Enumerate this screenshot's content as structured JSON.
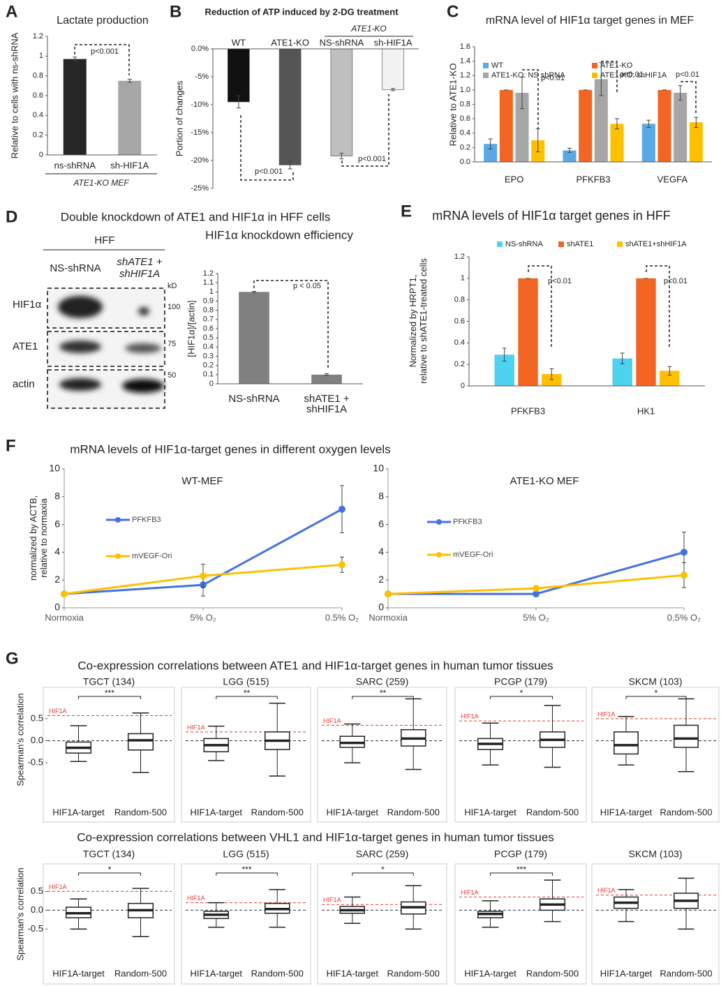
{
  "chart_data": [
    {
      "type": "bar",
      "panel": "A",
      "title": "Lactate production",
      "ylabel": "Relative to cells with ns-shRNA",
      "categories": [
        "ns-shRNA",
        "sh-HIF1A"
      ],
      "values": [
        0.97,
        0.75
      ],
      "errors": [
        0.02,
        0.015
      ],
      "colors": [
        "#262626",
        "#a6a6a6"
      ],
      "ylim": [
        0,
        1.2
      ],
      "yticks": [
        0,
        0.2,
        0.4,
        0.6,
        0.8,
        1,
        1.2
      ],
      "group_label": "ATE1-KO MEF",
      "annotations": [
        "p<0.001"
      ]
    },
    {
      "type": "bar",
      "panel": "B",
      "title": "Reduction of ATP induced by 2-DG treatment",
      "ylabel": "Portion of changes",
      "categories": [
        "WT",
        "ATE1-KO",
        "NS-shRNA",
        "sh-HIF1A"
      ],
      "values": [
        -9.5,
        -20.8,
        -19.2,
        -7.3
      ],
      "errors": [
        1.1,
        0.7,
        0.5,
        0.2
      ],
      "colors": [
        "#111111",
        "#555555",
        "#bfbfbf",
        "#f2f2f2"
      ],
      "ylim": [
        -25,
        0
      ],
      "yticks": [
        {
          "value": 0,
          "label": "0.0%"
        },
        {
          "value": -5,
          "label": "-5%"
        },
        {
          "value": -10,
          "label": "-10%"
        },
        {
          "value": -15,
          "label": "-15%"
        },
        {
          "value": -20,
          "label": "-20%"
        },
        {
          "value": -25,
          "label": "-25%"
        }
      ],
      "group_label": "ATE1-KO",
      "annotations": [
        "p<0.001",
        "p<0.001"
      ]
    },
    {
      "type": "bar",
      "panel": "C",
      "title": "mRNA level of HIF1α target genes in MEF",
      "ylabel": "Relative to ATE1-KO",
      "categories": [
        "EPO",
        "PFKFB3",
        "VEGFA"
      ],
      "series": [
        {
          "name": "WT",
          "color": "#5aa9e6",
          "values": [
            0.25,
            0.16,
            0.53
          ],
          "errors": [
            0.07,
            0.03,
            0.05
          ]
        },
        {
          "name": "ATE1-KO",
          "color": "#f26522",
          "values": [
            1,
            1,
            1
          ],
          "errors": [
            0,
            0,
            0
          ]
        },
        {
          "name": "ATE1-KO: NS shRNA",
          "color": "#a6a6a6",
          "values": [
            0.96,
            1.15,
            0.96
          ],
          "errors": [
            0.22,
            0.23,
            0.1
          ]
        },
        {
          "name": "ATE1-KO: shHIF1A",
          "color": "#ffc000",
          "values": [
            0.3,
            0.53,
            0.55
          ],
          "errors": [
            0.16,
            0.07,
            0.07
          ]
        }
      ],
      "ylim": [
        0,
        1.6
      ],
      "yticks": [
        {
          "value": 0,
          "label": "0.0"
        },
        0.2,
        0.4,
        0.6,
        0.8,
        {
          "value": 1,
          "label": "1.0"
        },
        1.2,
        1.4,
        1.6
      ],
      "annotations": [
        "p<0.01",
        "p<0.01",
        "p<0.01"
      ]
    },
    {
      "type": "bar",
      "title": "HIF1α knockdown efficiency",
      "ylabel": "[HIF1α]/[actin]",
      "categories": [
        "NS-shRNA",
        [
          "shATE1 +",
          "shHIF1A"
        ]
      ],
      "values": [
        1,
        0.1
      ],
      "errors": [
        0.005,
        0.01
      ],
      "color": "#808080",
      "ylim": [
        0,
        1.2
      ],
      "yticks": [
        0,
        0.1,
        0.2,
        0.3,
        0.4,
        0.5,
        0.6,
        0.7,
        0.8,
        0.9,
        1,
        1.1,
        1.2
      ],
      "annotations": [
        "p < 0.05"
      ]
    },
    {
      "type": "bar",
      "panel": "E",
      "title": "mRNA levels of HIF1α target genes in HFF",
      "ylabel": [
        "Normalized by HRPT1,",
        "relative to shATE1-treated cells"
      ],
      "categories": [
        "PFKFB3",
        "HK1"
      ],
      "series": [
        {
          "name": "NS-shRNA",
          "color": "#4dd2f0",
          "values": [
            0.29,
            0.255
          ],
          "errors": [
            0.06,
            0.05
          ]
        },
        {
          "name": "shATE1",
          "color": "#f26522",
          "values": [
            1,
            1
          ],
          "errors": [
            0,
            0
          ]
        },
        {
          "name": "shATE1+shHIF1A",
          "color": "#ffc000",
          "values": [
            0.11,
            0.14
          ],
          "errors": [
            0.05,
            0.04
          ]
        }
      ],
      "ylim": [
        0,
        1.2
      ],
      "yticks": [
        0,
        0.2,
        0.4,
        0.6,
        0.8,
        1,
        1.2
      ],
      "annotations": [
        "p<0.01",
        "p<0.01"
      ]
    },
    {
      "type": "line",
      "panel": "F",
      "heading": "mRNA levels of HIF1α-target genes in different oxygen levels",
      "title": "WT-MEF",
      "ylabel": [
        "normalized by ACTB,",
        "relative to normaxia"
      ],
      "categories": [
        "Normoxia",
        "5% O₂",
        "0.5% O₂"
      ],
      "series": [
        {
          "name": "PFKFB3",
          "color": "#4472e4",
          "values": [
            1,
            1.65,
            7.1
          ],
          "errors": [
            0,
            0.8,
            1.7
          ]
        },
        {
          "name": "mVEGF-Ori",
          "color": "#ffc000",
          "values": [
            1,
            2.3,
            3.1
          ],
          "errors": [
            0,
            0.85,
            0.55
          ]
        }
      ],
      "ylim": [
        0,
        10
      ],
      "yticks": [
        0,
        2,
        4,
        6,
        8,
        10
      ]
    },
    {
      "type": "line",
      "title": "ATE1-KO MEF",
      "categories": [
        "Normoxia",
        "5% O₂",
        "0.5% O₂"
      ],
      "series": [
        {
          "name": "PFKFB3",
          "color": "#4472e4",
          "values": [
            1,
            1,
            4
          ],
          "errors": [
            0,
            0.15,
            1.45
          ]
        },
        {
          "name": "mVEGF-Ori",
          "color": "#ffc000",
          "values": [
            1,
            1.4,
            2.35
          ],
          "errors": [
            0,
            0.1,
            0.9
          ]
        }
      ],
      "ylim": [
        0,
        10
      ],
      "yticks": [
        0,
        2,
        4,
        6,
        8,
        10
      ]
    },
    {
      "type": "box",
      "panel": "G",
      "heading": "Co-expression correlations between ATE1 and HIF1α-target genes in human tumor tissues",
      "title": "TGCT (134)",
      "ylabel": "Spearman's correlation",
      "categories": [
        "HIF1A-target",
        "Random-500"
      ],
      "boxes": [
        [
          -0.47,
          -0.28,
          -0.16,
          -0.03,
          0.34
        ],
        [
          -0.72,
          -0.21,
          0.01,
          0.16,
          0.63
        ]
      ],
      "ref_label": "HIF1A",
      "ref_value": 0.57,
      "ref_color": "#e53935",
      "sig": "***",
      "ylim": [
        -1.4,
        1.1
      ],
      "yticks": [
        -0.5,
        {
          "value": 0,
          "label": "0.0"
        },
        0.5
      ]
    },
    {
      "type": "box",
      "title": "LGG (515)",
      "categories": [
        "HIF1A-target",
        "Random-500"
      ],
      "boxes": [
        [
          -0.45,
          -0.25,
          -0.1,
          0.05,
          0.33
        ],
        [
          -0.8,
          -0.2,
          0,
          0.2,
          0.85
        ]
      ],
      "ref_label": "HIF1A",
      "ref_value": 0.2,
      "ref_color": "#e53935",
      "sig": "**",
      "ylim": [
        -1.4,
        1.1
      ]
    },
    {
      "type": "box",
      "title": "SARC (259)",
      "categories": [
        "HIF1A-target",
        "Random-500"
      ],
      "boxes": [
        [
          -0.5,
          -0.15,
          -0.05,
          0.1,
          0.38
        ],
        [
          -0.65,
          -0.12,
          0.05,
          0.25,
          0.95
        ]
      ],
      "ref_label": "HIF1A",
      "ref_value": 0.35,
      "ref_color": "#e53935",
      "sig": "**",
      "ylim": [
        -1.4,
        1.1
      ]
    },
    {
      "type": "box",
      "title": "PCGP (179)",
      "categories": [
        "HIF1A-target",
        "Random-500"
      ],
      "boxes": [
        [
          -0.55,
          -0.2,
          -0.07,
          0.05,
          0.4
        ],
        [
          -0.6,
          -0.15,
          0.02,
          0.2,
          0.8
        ]
      ],
      "ref_label": "HIF1A",
      "ref_value": 0.45,
      "ref_color": "#e53935",
      "sig": "*",
      "ylim": [
        -1.4,
        1.1
      ]
    },
    {
      "type": "box",
      "title": "SKCM (103)",
      "categories": [
        "HIF1A-target",
        "Random-500"
      ],
      "boxes": [
        [
          -0.55,
          -0.3,
          -0.1,
          0.2,
          0.55
        ],
        [
          -0.7,
          -0.15,
          0.05,
          0.35,
          0.95
        ]
      ],
      "ref_label": "HIF1A",
      "ref_value": 0.5,
      "ref_color": "#e53935",
      "sig": "*",
      "ylim": [
        -1.4,
        1.1
      ]
    },
    {
      "type": "box",
      "heading": "Co-expression correlations between VHL1 and HIF1α-target genes in human tumor tissues",
      "title": "TGCT (134)",
      "ylabel": "Spearman's correlation",
      "categories": [
        "HIF1A-target",
        "Random-500"
      ],
      "boxes": [
        [
          -0.5,
          -0.2,
          -0.08,
          0.08,
          0.3
        ],
        [
          -0.7,
          -0.2,
          0,
          0.18,
          0.58
        ]
      ],
      "ref_label": "HIF1A",
      "ref_value": 0.5,
      "ref_color": "#e53935",
      "sig": "*",
      "ylim": [
        -1.4,
        1.1
      ],
      "yticks": [
        -0.5,
        {
          "value": 0,
          "label": "0.0"
        },
        0.5
      ]
    },
    {
      "type": "box",
      "title": "LGG (515)",
      "categories": [
        "HIF1A-target",
        "Random-500"
      ],
      "boxes": [
        [
          -0.45,
          -0.22,
          -0.12,
          -0.03,
          0.2
        ],
        [
          -0.45,
          -0.08,
          0.03,
          0.18,
          0.55
        ]
      ],
      "ref_label": "HIF1A",
      "ref_value": 0.2,
      "ref_color": "#e53935",
      "sig": "***",
      "ylim": [
        -1.4,
        1.1
      ]
    },
    {
      "type": "box",
      "title": "SARC (259)",
      "categories": [
        "HIF1A-target",
        "Random-500"
      ],
      "boxes": [
        [
          -0.35,
          -0.08,
          0,
          0.1,
          0.35
        ],
        [
          -0.5,
          -0.1,
          0.08,
          0.22,
          0.65
        ]
      ],
      "ref_label": "HIF1A",
      "ref_value": 0.15,
      "ref_color": "#e53935",
      "sig": "*",
      "ylim": [
        -1.4,
        1.1
      ]
    },
    {
      "type": "box",
      "title": "PCGP (179)",
      "categories": [
        "HIF1A-target",
        "Random-500"
      ],
      "boxes": [
        [
          -0.45,
          -0.2,
          -0.1,
          -0.03,
          0.25
        ],
        [
          -0.3,
          0,
          0.15,
          0.3,
          0.8
        ]
      ],
      "ref_label": "HIF1A",
      "ref_value": 0.35,
      "ref_color": "#e53935",
      "sig": "***",
      "ylim": [
        -1.4,
        1.1
      ]
    },
    {
      "type": "box",
      "title": "SKCM (103)",
      "categories": [
        "HIF1A-target",
        "Random-500"
      ],
      "boxes": [
        [
          -0.3,
          0.05,
          0.2,
          0.35,
          0.55
        ],
        [
          -0.5,
          0.05,
          0.25,
          0.45,
          0.85
        ]
      ],
      "ref_label": "HIF1A",
      "ref_value": 0.4,
      "ref_color": "#e53935",
      "ylim": [
        -1.4,
        1.1
      ]
    }
  ],
  "blot": {
    "panel": "D",
    "heading": "Double knockdown of ATE1 and HIF1α in HFF cells",
    "cell_line": "HFF",
    "lanes": [
      [
        "NS-shRNA"
      ],
      [
        "shATE1 +",
        "shHIF1A"
      ]
    ],
    "proteins": [
      "HIF1α",
      "ATE1",
      "actin"
    ],
    "unit": "kD",
    "markers": [
      100,
      75,
      50
    ]
  }
}
